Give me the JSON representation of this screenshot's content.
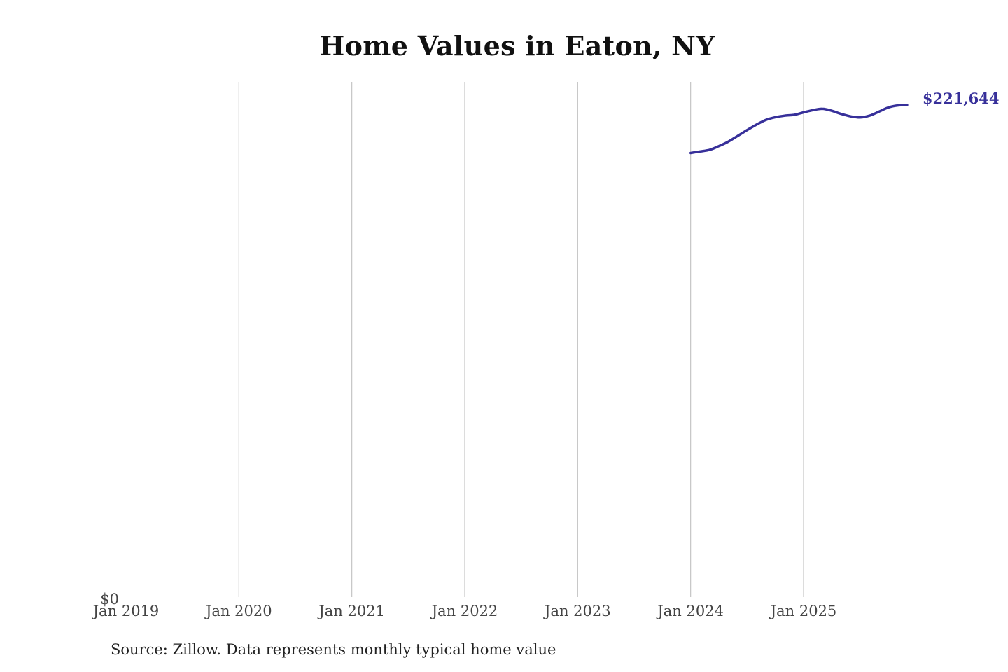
{
  "chart_data": {
    "type": "line",
    "title": "Home Values in Eaton, NY",
    "source": "Source: Zillow. Data represents monthly typical home value",
    "x_ticks": [
      "Jan 2019",
      "Jan 2020",
      "Jan 2021",
      "Jan 2022",
      "Jan 2023",
      "Jan 2024",
      "Jan 2025"
    ],
    "x_range": [
      "2019-01",
      "2025-12"
    ],
    "y_ticks": [
      "$0"
    ],
    "ylim": [
      0,
      232000
    ],
    "grid": "vertical gridlines at each January",
    "end_label": "$221,644",
    "line_color": "#37309a",
    "series": [
      {
        "x": [
          "2024-01",
          "2024-02",
          "2024-03",
          "2024-04",
          "2024-05",
          "2024-06",
          "2024-07",
          "2024-08",
          "2024-09",
          "2024-10",
          "2024-11",
          "2024-12",
          "2025-01",
          "2025-02",
          "2025-03",
          "2025-04",
          "2025-05",
          "2025-06",
          "2025-07",
          "2025-08",
          "2025-09",
          "2025-10",
          "2025-11",
          "2025-12"
        ],
        "values": [
          200000,
          200700,
          201400,
          203100,
          205100,
          207700,
          210300,
          212800,
          214900,
          216100,
          216800,
          217200,
          218300,
          219300,
          219900,
          219000,
          217600,
          216500,
          216000,
          216800,
          218600,
          220500,
          221400,
          221644
        ]
      }
    ]
  }
}
